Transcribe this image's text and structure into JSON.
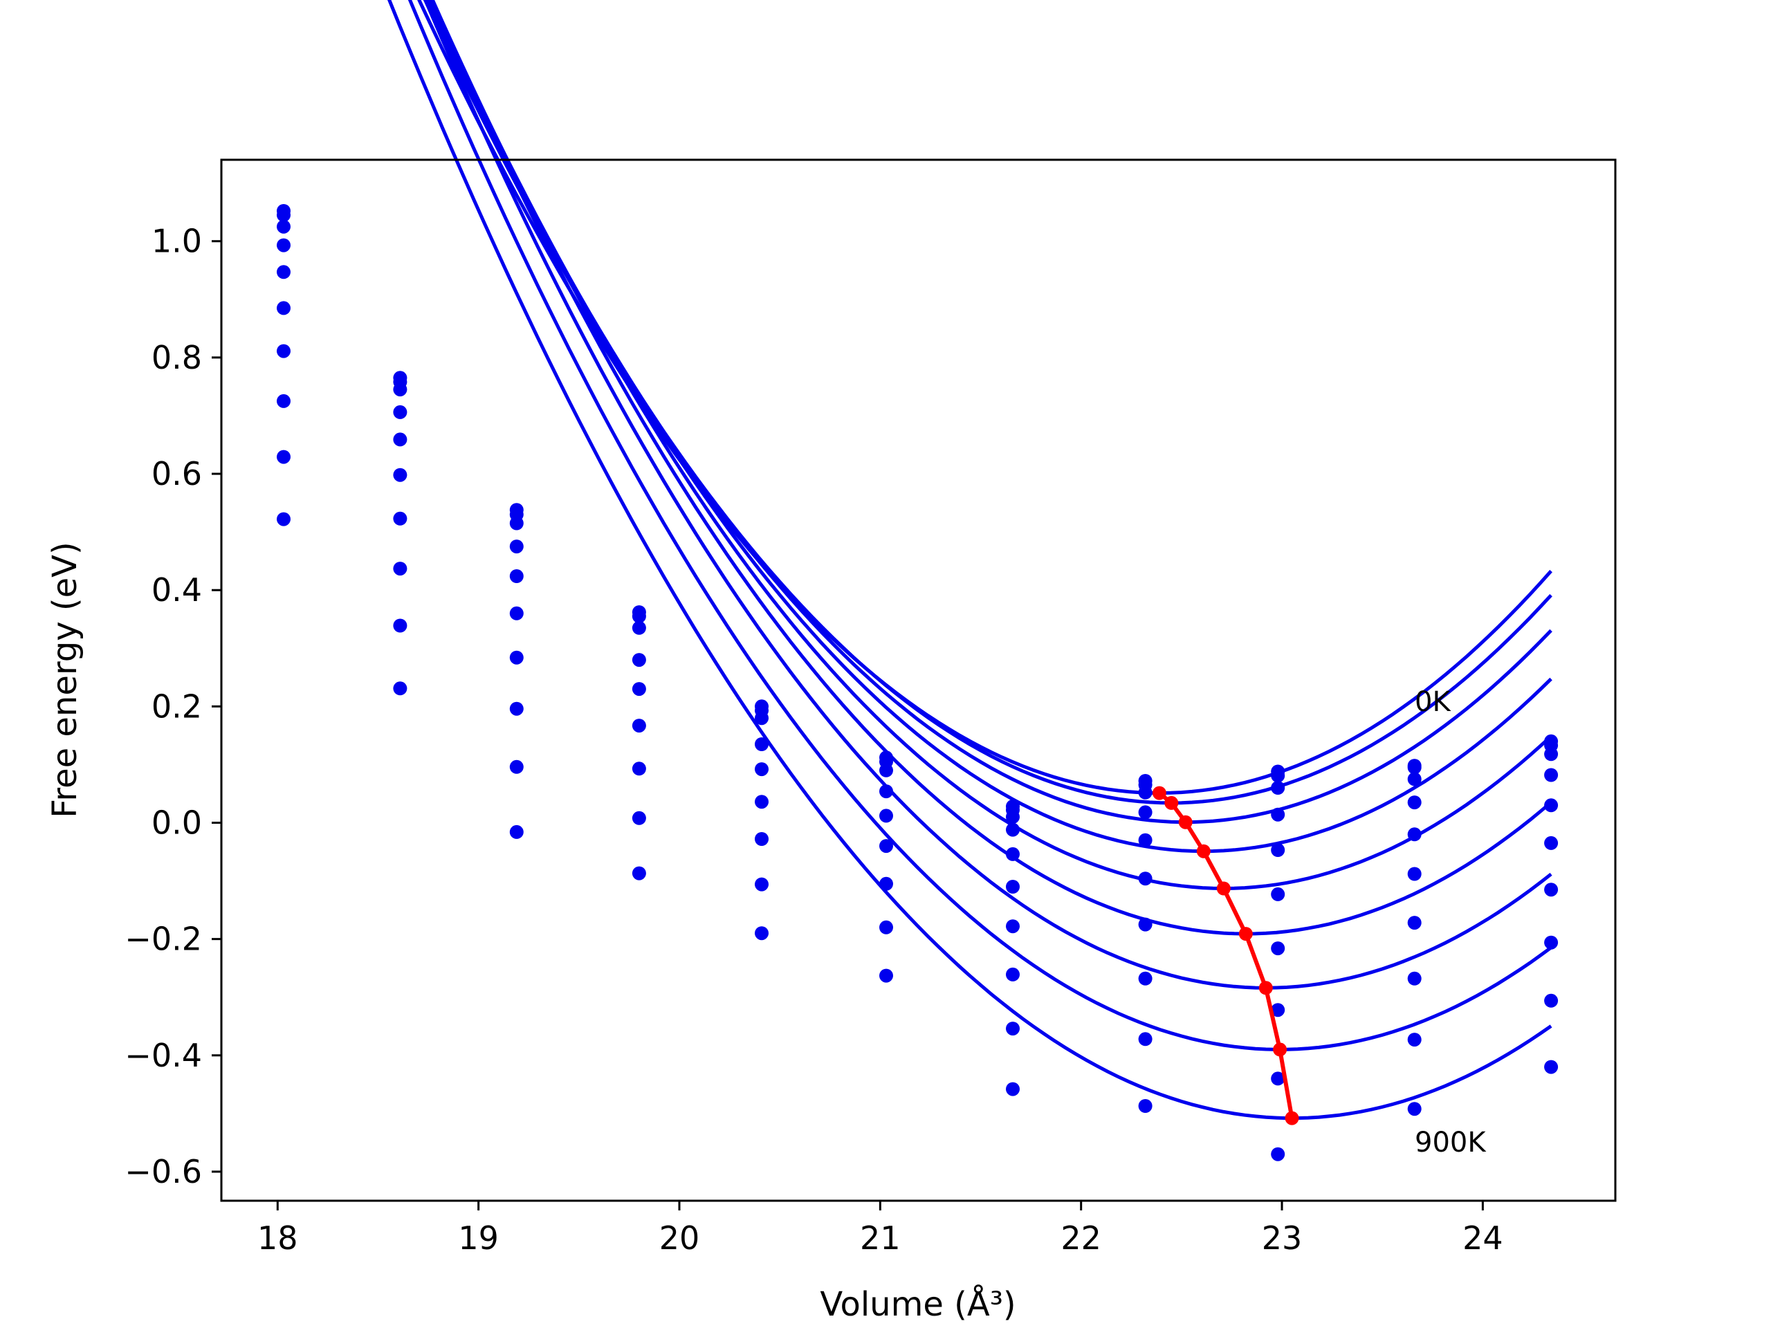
{
  "chart_data": {
    "type": "line",
    "title": "",
    "xlabel": "Volume (Å³)",
    "ylabel": "Free energy (eV)",
    "xlim": [
      17.72,
      24.66
    ],
    "ylim": [
      -0.65,
      1.14
    ],
    "xticks": [
      18,
      19,
      20,
      21,
      22,
      23,
      24
    ],
    "yticks": [
      -0.6,
      -0.4,
      -0.2,
      0.0,
      0.2,
      0.4,
      0.6,
      0.8,
      1.0
    ],
    "grid": false,
    "legend": "none",
    "annotations": [
      {
        "text": "0K",
        "x": 23.65,
        "y": 0.2
      },
      {
        "text": "900K",
        "x": 23.65,
        "y": -0.56
      }
    ],
    "colors": {
      "isotherms": "#0000ee",
      "equilibrium": "#ff0000"
    },
    "x": [
      18.03,
      18.61,
      19.19,
      19.8,
      20.41,
      21.03,
      21.66,
      22.32,
      22.98,
      23.66,
      24.34
    ],
    "series": [
      {
        "values": [
          1.052,
          0.765,
          0.538,
          0.362,
          0.2,
          0.112,
          0.028,
          0.072,
          0.088,
          0.098,
          0.14
        ]
      },
      {
        "values": [
          1.045,
          0.758,
          0.53,
          0.355,
          0.193,
          0.105,
          0.022,
          0.065,
          0.081,
          0.095,
          0.133
        ]
      },
      {
        "values": [
          1.025,
          0.745,
          0.515,
          0.335,
          0.18,
          0.09,
          0.01,
          0.052,
          0.06,
          0.075,
          0.118
        ]
      },
      {
        "values": [
          0.993,
          0.706,
          0.475,
          0.28,
          0.135,
          0.054,
          -0.012,
          0.018,
          0.014,
          0.035,
          0.082
        ]
      },
      {
        "values": [
          0.947,
          0.659,
          0.424,
          0.23,
          0.092,
          0.012,
          -0.054,
          -0.03,
          -0.047,
          -0.02,
          0.03
        ]
      },
      {
        "values": [
          0.885,
          0.598,
          0.36,
          0.167,
          0.036,
          -0.04,
          -0.11,
          -0.096,
          -0.123,
          -0.088,
          -0.035
        ]
      },
      {
        "values": [
          0.811,
          0.523,
          0.284,
          0.093,
          -0.028,
          -0.105,
          -0.178,
          -0.175,
          -0.216,
          -0.172,
          -0.115
        ]
      },
      {
        "values": [
          0.725,
          0.437,
          0.196,
          0.008,
          -0.106,
          -0.18,
          -0.261,
          -0.268,
          -0.322,
          -0.268,
          -0.206
        ]
      },
      {
        "values": [
          0.629,
          0.339,
          0.096,
          -0.087,
          -0.19,
          -0.263,
          -0.354,
          -0.372,
          -0.44,
          -0.373,
          -0.306
        ]
      },
      {
        "values": [
          0.522,
          0.231,
          -0.016,
          null,
          null,
          null,
          -0.458,
          -0.487,
          -0.57,
          -0.492,
          -0.42
        ]
      }
    ],
    "fits": [
      {
        "a": 0.1004,
        "b": 22.39,
        "c": 0.051
      },
      {
        "a": 0.1,
        "b": 22.45,
        "c": 0.034
      },
      {
        "a": 0.0995,
        "b": 22.52,
        "c": 0.001
      },
      {
        "a": 0.099,
        "b": 22.61,
        "c": -0.049
      },
      {
        "a": 0.0985,
        "b": 22.71,
        "c": -0.113
      },
      {
        "a": 0.0978,
        "b": 22.82,
        "c": -0.191
      },
      {
        "a": 0.097,
        "b": 22.92,
        "c": -0.284
      },
      {
        "a": 0.0962,
        "b": 22.99,
        "c": -0.39
      },
      {
        "a": 0.0952,
        "b": 23.05,
        "c": -0.508
      }
    ],
    "equilibrium": {
      "x": [
        22.39,
        22.45,
        22.52,
        22.61,
        22.71,
        22.82,
        22.92,
        22.99,
        23.05
      ],
      "y": [
        0.051,
        0.034,
        0.001,
        -0.049,
        -0.113,
        -0.191,
        -0.284,
        -0.39,
        -0.508
      ]
    }
  }
}
